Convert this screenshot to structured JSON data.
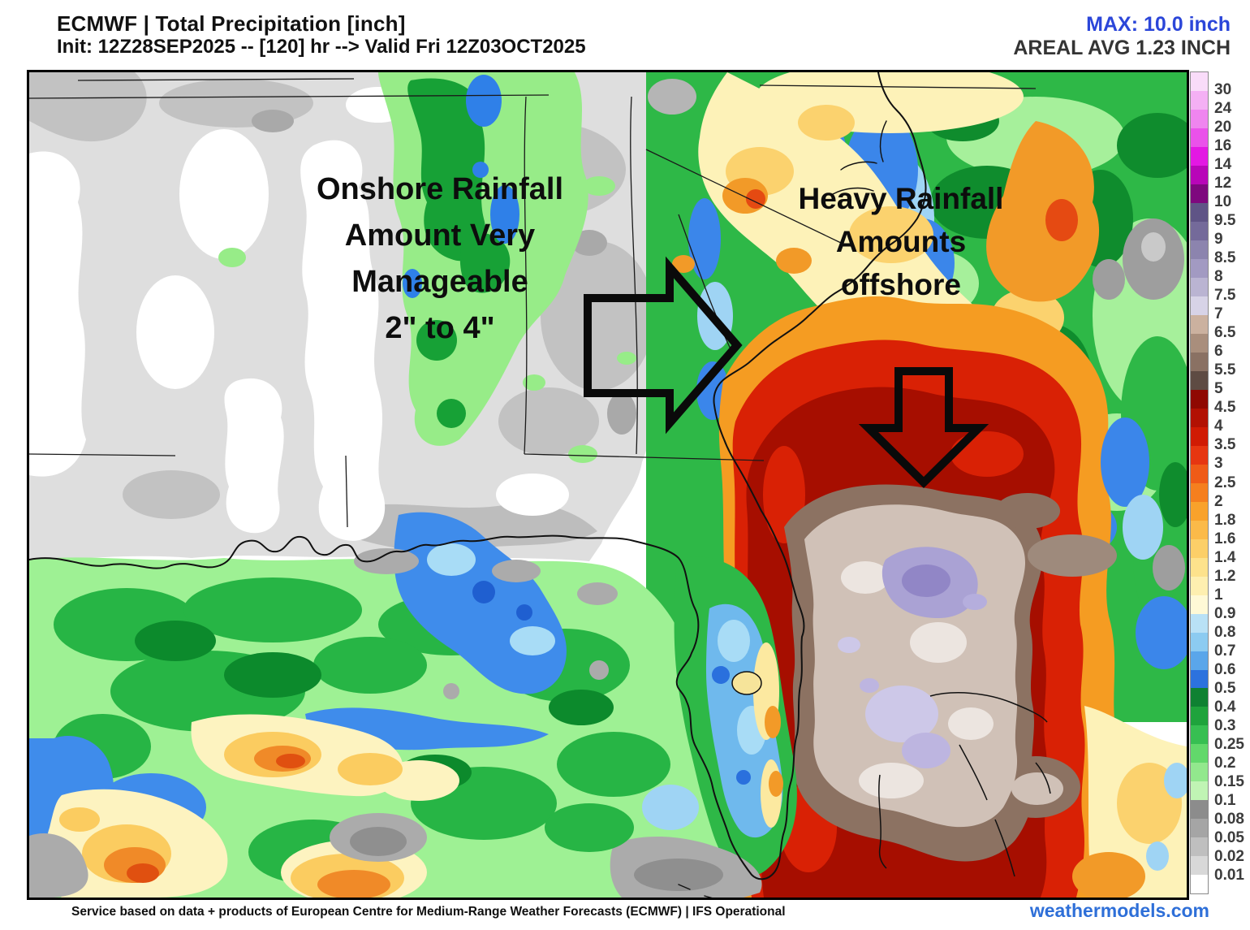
{
  "header": {
    "title": "ECMWF | Total Precipitation [inch]",
    "subtitle": "Init: 12Z28SEP2025 -- [120] hr --> Valid Fri 12Z03OCT2025",
    "max_label": "MAX: 10.0 inch",
    "max_color": "#2b46d9",
    "areal_avg_label": "AREAL AVG 1.23 INCH"
  },
  "annotations": {
    "onshore": {
      "lines": [
        "Onshore Rainfall",
        "Amount Very",
        "Manageable",
        "2\" to 4\""
      ]
    },
    "offshore": {
      "lines": [
        "Heavy Rainfall",
        "Amounts",
        "offshore"
      ]
    }
  },
  "colorbar": {
    "units": "inch",
    "labels": [
      "30",
      "24",
      "20",
      "16",
      "14",
      "12",
      "10",
      "9.5",
      "9",
      "8.5",
      "8",
      "7.5",
      "7",
      "6.5",
      "6",
      "5.5",
      "5",
      "4.5",
      "4",
      "3.5",
      "3",
      "2.5",
      "2",
      "1.8",
      "1.6",
      "1.4",
      "1.2",
      "1",
      "0.9",
      "0.8",
      "0.7",
      "0.6",
      "0.5",
      "0.4",
      "0.3",
      "0.25",
      "0.2",
      "0.15",
      "0.1",
      "0.08",
      "0.05",
      "0.02",
      "0.01"
    ],
    "colors": [
      "#f9dcf9",
      "#f4b0f4",
      "#ef85ef",
      "#ea52ea",
      "#e318e3",
      "#b806b8",
      "#7e087e",
      "#5f5486",
      "#746a9a",
      "#8c84ae",
      "#a29ac2",
      "#bab4d2",
      "#d7d3e7",
      "#cbb19f",
      "#a98e7c",
      "#8a7163",
      "#5e4b43",
      "#8f0902",
      "#b21103",
      "#d01b04",
      "#e63611",
      "#ef5b17",
      "#f57f1e",
      "#f9a22b",
      "#fbba49",
      "#fccf68",
      "#fde28c",
      "#feefb0",
      "#fff9d6",
      "#b9e1f6",
      "#8ccbf1",
      "#5aa6ea",
      "#2c72de",
      "#0f8132",
      "#1fa33c",
      "#37bf52",
      "#62d86b",
      "#92e88d",
      "#c0f4b4",
      "#8c8c8c",
      "#a5a5a5",
      "#bfbfbf",
      "#d8d8d8",
      "#ffffff"
    ]
  },
  "footer": {
    "credit": "Service based on data + products of European Centre for Medium-Range Weather Forecasts (ECMWF) | IFS Operational",
    "brand": "weathermodels.com",
    "brand_color": "#2e6fd8"
  },
  "map": {
    "description": "ECMWF 120-hour total precipitation forecast map over the southeastern United States and western Atlantic"
  }
}
